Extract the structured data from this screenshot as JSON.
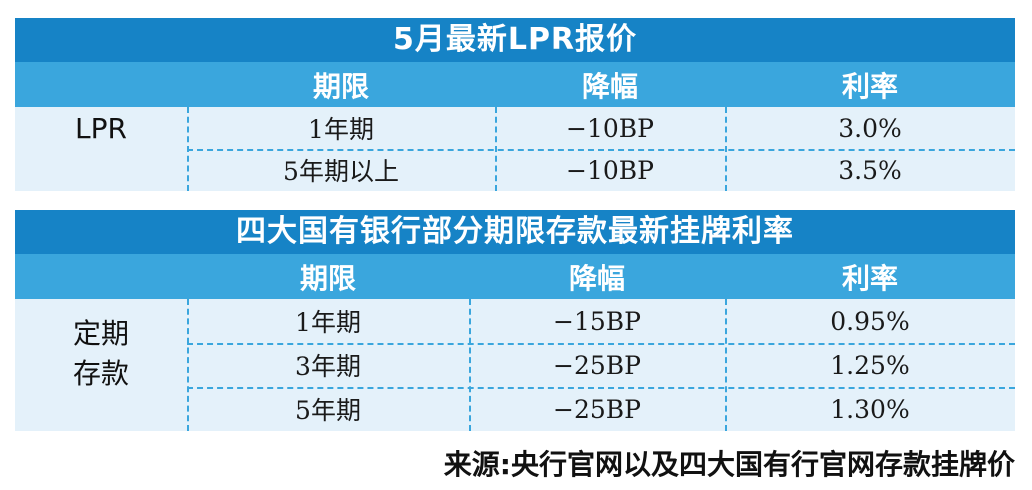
{
  "table1": {
    "title": "5月最新LPR报价",
    "headers": [
      "期限",
      "降幅",
      "利率"
    ],
    "row_label": "LPR",
    "rows": [
      {
        "term": "1年期",
        "cut": "−10BP",
        "rate": "3.0%"
      },
      {
        "term": "5年期以上",
        "cut": "−10BP",
        "rate": "3.5%"
      }
    ]
  },
  "table2": {
    "title": "四大国有银行部分期限存款最新挂牌利率",
    "headers": [
      "期限",
      "降幅",
      "利率"
    ],
    "row_label_line1": "定期",
    "row_label_line2": "存款",
    "rows": [
      {
        "term": "1年期",
        "cut": "−15BP",
        "rate": "0.95%"
      },
      {
        "term": "3年期",
        "cut": "−25BP",
        "rate": "1.25%"
      },
      {
        "term": "5年期",
        "cut": "−25BP",
        "rate": "1.30%"
      }
    ]
  },
  "source": "来源:央行官网以及四大国有行官网存款挂牌价",
  "colors": {
    "title_bar": "#1683c6",
    "header_row": "#3aa6dd",
    "body_background": "#e4f1fa",
    "divider": "#3aa6dd"
  }
}
